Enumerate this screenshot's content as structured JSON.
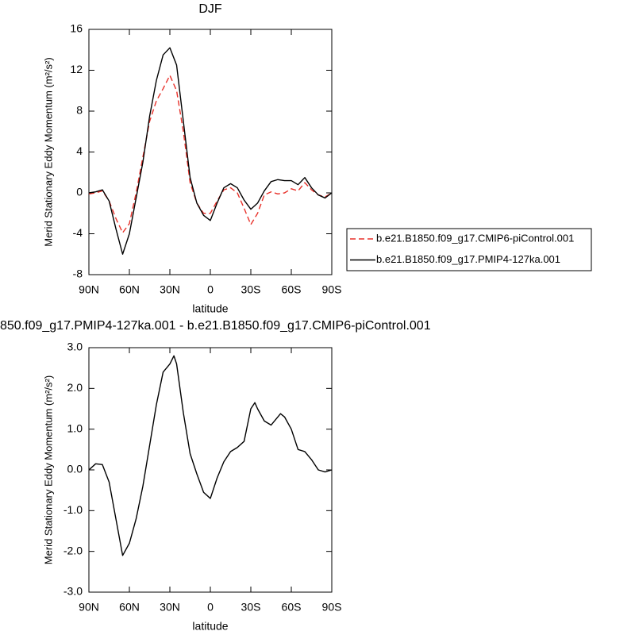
{
  "chart_data": [
    {
      "type": "line",
      "title": "DJF",
      "xlabel": "latitude",
      "ylabel": "Merid Stationary Eddy Momentum (m²/s²)",
      "x": [
        90,
        85,
        80,
        75,
        70,
        65,
        60,
        55,
        50,
        45,
        40,
        35,
        30,
        25,
        20,
        15,
        10,
        5,
        0,
        -5,
        -10,
        -15,
        -20,
        -25,
        -30,
        -35,
        -40,
        -45,
        -50,
        -55,
        -60,
        -65,
        -70,
        -75,
        -80,
        -85,
        -90
      ],
      "xlim": [
        90,
        -90
      ],
      "xticks": [
        {
          "value": 90,
          "label": "90N"
        },
        {
          "value": 60,
          "label": "60N"
        },
        {
          "value": 30,
          "label": "30N"
        },
        0,
        {
          "value": -30,
          "label": "30S"
        },
        {
          "value": -60,
          "label": "60S"
        },
        {
          "value": -90,
          "label": "90S"
        }
      ],
      "ylim": [
        -8,
        16
      ],
      "yticks": [
        -8,
        -4,
        0,
        4,
        8,
        12,
        16
      ],
      "legend": "right",
      "series": [
        {
          "name": "b.e21.B1850.f09_g17.CMIP6-piControl.001",
          "color": "#e8312a",
          "dash": true,
          "values": [
            -0.1,
            0,
            0.2,
            -0.8,
            -2.5,
            -3.9,
            -3.0,
            0,
            3.5,
            7,
            9,
            10.2,
            11.5,
            10,
            6,
            1,
            -1,
            -2,
            -2,
            -0.8,
            0.3,
            0.5,
            0,
            -1.5,
            -3.1,
            -2,
            -0.2,
            0.1,
            -0.1,
            0,
            0.4,
            0.2,
            1.0,
            0.3,
            -0.2,
            -0.4,
            0
          ]
        },
        {
          "name": "b.e21.B1850.f09_g17.PMIP4-127ka.001",
          "color": "#000000",
          "dash": false,
          "values": [
            0,
            0.1,
            0.3,
            -0.8,
            -3.5,
            -6.0,
            -4,
            -0.5,
            3,
            7.5,
            11,
            13.5,
            14.2,
            12.5,
            7,
            1.5,
            -1,
            -2.2,
            -2.7,
            -1,
            0.5,
            0.9,
            0.5,
            -0.7,
            -1.6,
            -1,
            0.2,
            1.1,
            1.3,
            1.2,
            1.2,
            0.8,
            1.5,
            0.5,
            -0.2,
            -0.5,
            0
          ]
        }
      ]
    },
    {
      "type": "line",
      "title": "850.f09_g17.PMIP4-127ka.001 - b.e21.B1850.f09_g17.CMIP6-piControl.001",
      "xlabel": "latitude",
      "ylabel": "Merid Stationary Eddy Momentum (m²/s²)",
      "x": [
        90,
        85,
        80,
        75,
        70,
        65,
        60,
        55,
        50,
        45,
        40,
        35,
        30,
        27,
        25,
        20,
        15,
        10,
        5,
        0,
        -5,
        -10,
        -15,
        -20,
        -25,
        -30,
        -33,
        -35,
        -40,
        -45,
        -50,
        -52,
        -55,
        -60,
        -65,
        -70,
        -75,
        -80,
        -85,
        -90
      ],
      "xlim": [
        90,
        -90
      ],
      "xticks": [
        {
          "value": 90,
          "label": "90N"
        },
        {
          "value": 60,
          "label": "60N"
        },
        {
          "value": 30,
          "label": "30N"
        },
        0,
        {
          "value": -30,
          "label": "30S"
        },
        {
          "value": -60,
          "label": "60S"
        },
        {
          "value": -90,
          "label": "90S"
        }
      ],
      "ylim": [
        -3,
        3
      ],
      "yticks": [
        {
          "value": -3,
          "label": "-3.0"
        },
        {
          "value": -2,
          "label": "-2.0"
        },
        {
          "value": -1,
          "label": "-1.0"
        },
        {
          "value": 0,
          "label": "0.0"
        },
        {
          "value": 1,
          "label": "1.0"
        },
        {
          "value": 2,
          "label": "2.0"
        },
        {
          "value": 3,
          "label": "3.0"
        }
      ],
      "series": [
        {
          "color": "#000000",
          "dash": false,
          "values": [
            0.0,
            0.15,
            0.13,
            -0.3,
            -1.2,
            -2.1,
            -1.8,
            -1.2,
            -0.4,
            0.6,
            1.6,
            2.4,
            2.6,
            2.8,
            2.6,
            1.4,
            0.4,
            -0.1,
            -0.55,
            -0.7,
            -0.2,
            0.2,
            0.45,
            0.55,
            0.7,
            1.5,
            1.65,
            1.5,
            1.2,
            1.1,
            1.3,
            1.38,
            1.3,
            1.0,
            0.5,
            0.45,
            0.25,
            0.0,
            -0.05,
            0.0
          ]
        }
      ]
    }
  ]
}
